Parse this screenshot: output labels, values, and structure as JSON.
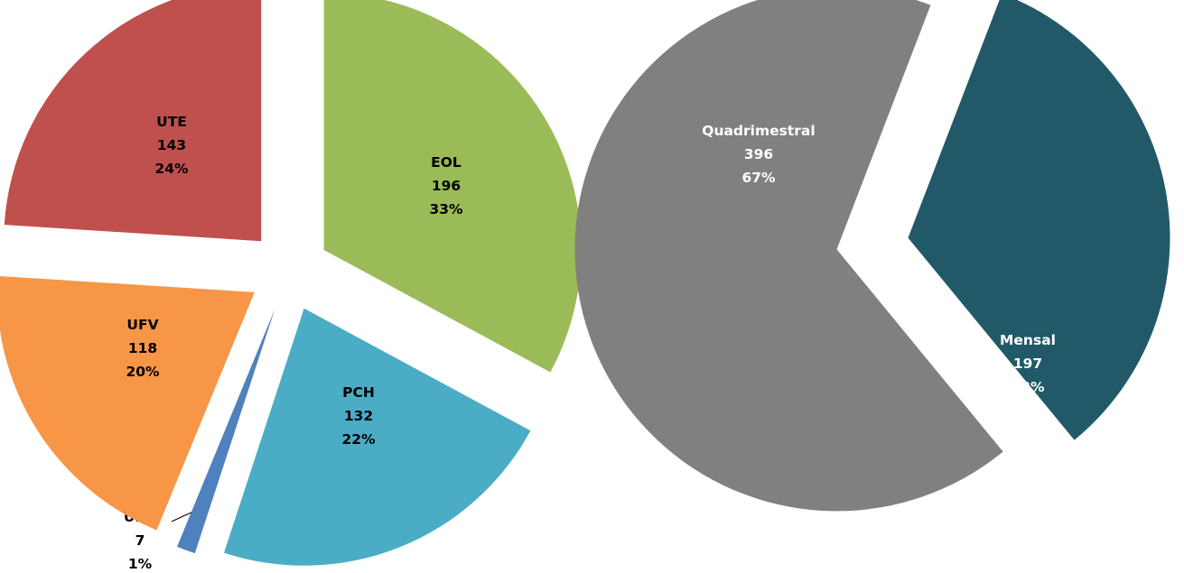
{
  "chart_data": [
    {
      "type": "pie",
      "exploded": true,
      "slices": [
        {
          "name": "EOL",
          "value": 196,
          "percent": "33%",
          "color": "#9BBB59"
        },
        {
          "name": "PCH",
          "value": 132,
          "percent": "22%",
          "color": "#4BACC6"
        },
        {
          "name": "UHE",
          "value": 7,
          "percent": "1%",
          "color": "#4F81BD"
        },
        {
          "name": "UFV",
          "value": 118,
          "percent": "20%",
          "color": "#F79646"
        },
        {
          "name": "UTE",
          "value": 143,
          "percent": "24%",
          "color": "#C0504D"
        }
      ]
    },
    {
      "type": "pie",
      "exploded": true,
      "slices": [
        {
          "name": "Mensal",
          "value": 197,
          "percent": "33%",
          "color": "#215968"
        },
        {
          "name": "Quadrimestral",
          "value": 396,
          "percent": "67%",
          "color": "#808080"
        }
      ]
    }
  ]
}
